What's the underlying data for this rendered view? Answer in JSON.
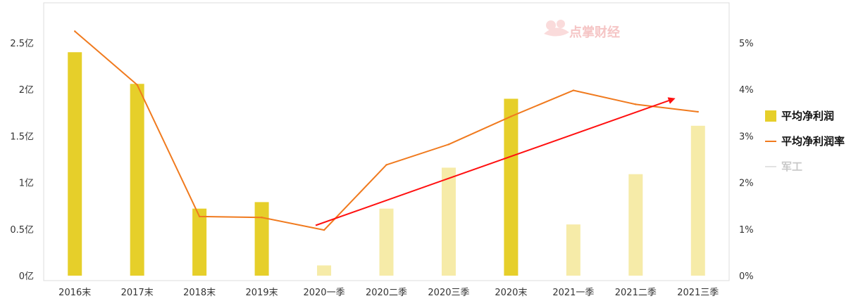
{
  "watermark": "点掌财经",
  "chart_data": {
    "type": "bar",
    "categories": [
      "2016末",
      "2017末",
      "2018末",
      "2019末",
      "2020一季",
      "2020二季",
      "2020三季",
      "2020末",
      "2021一季",
      "2021二季",
      "2021三季"
    ],
    "series": [
      {
        "name": "平均净利润",
        "type": "bar",
        "axis": "left",
        "values": [
          2.4,
          2.06,
          0.72,
          0.79,
          0.11,
          0.72,
          1.16,
          1.9,
          0.55,
          1.09,
          1.61
        ],
        "emphasized": [
          true,
          true,
          true,
          true,
          false,
          false,
          false,
          true,
          false,
          false,
          false
        ],
        "color": "#E6CF2A",
        "faded_color": "#F6EBA8"
      },
      {
        "name": "平均净利润率",
        "type": "line",
        "axis": "right",
        "values": [
          5.25,
          4.1,
          1.27,
          1.25,
          0.98,
          2.38,
          2.82,
          3.42,
          3.98,
          3.68,
          3.52
        ],
        "color": "#F07A1E"
      }
    ],
    "trend_arrow": {
      "color": "#FF1010",
      "from": {
        "x": "2020一季",
        "y": 1.08
      },
      "to": {
        "x": "2021三季",
        "y": 3.8
      }
    },
    "left_axis": {
      "ticks": [
        "0亿",
        "0.5亿",
        "1亿",
        "1.5亿",
        "2亿",
        "2.5亿"
      ],
      "ylim": [
        0,
        2.5
      ]
    },
    "right_axis": {
      "ticks": [
        "0%",
        "1%",
        "2%",
        "3%",
        "4%",
        "5%"
      ],
      "ylim": [
        0,
        5
      ]
    },
    "legend": {
      "position": "right",
      "items": [
        {
          "label": "平均净利润",
          "kind": "bar",
          "faded": false
        },
        {
          "label": "平均净利润率",
          "kind": "line",
          "faded": false
        },
        {
          "label": "军工",
          "kind": "line",
          "faded": true
        }
      ]
    },
    "grid": false
  }
}
